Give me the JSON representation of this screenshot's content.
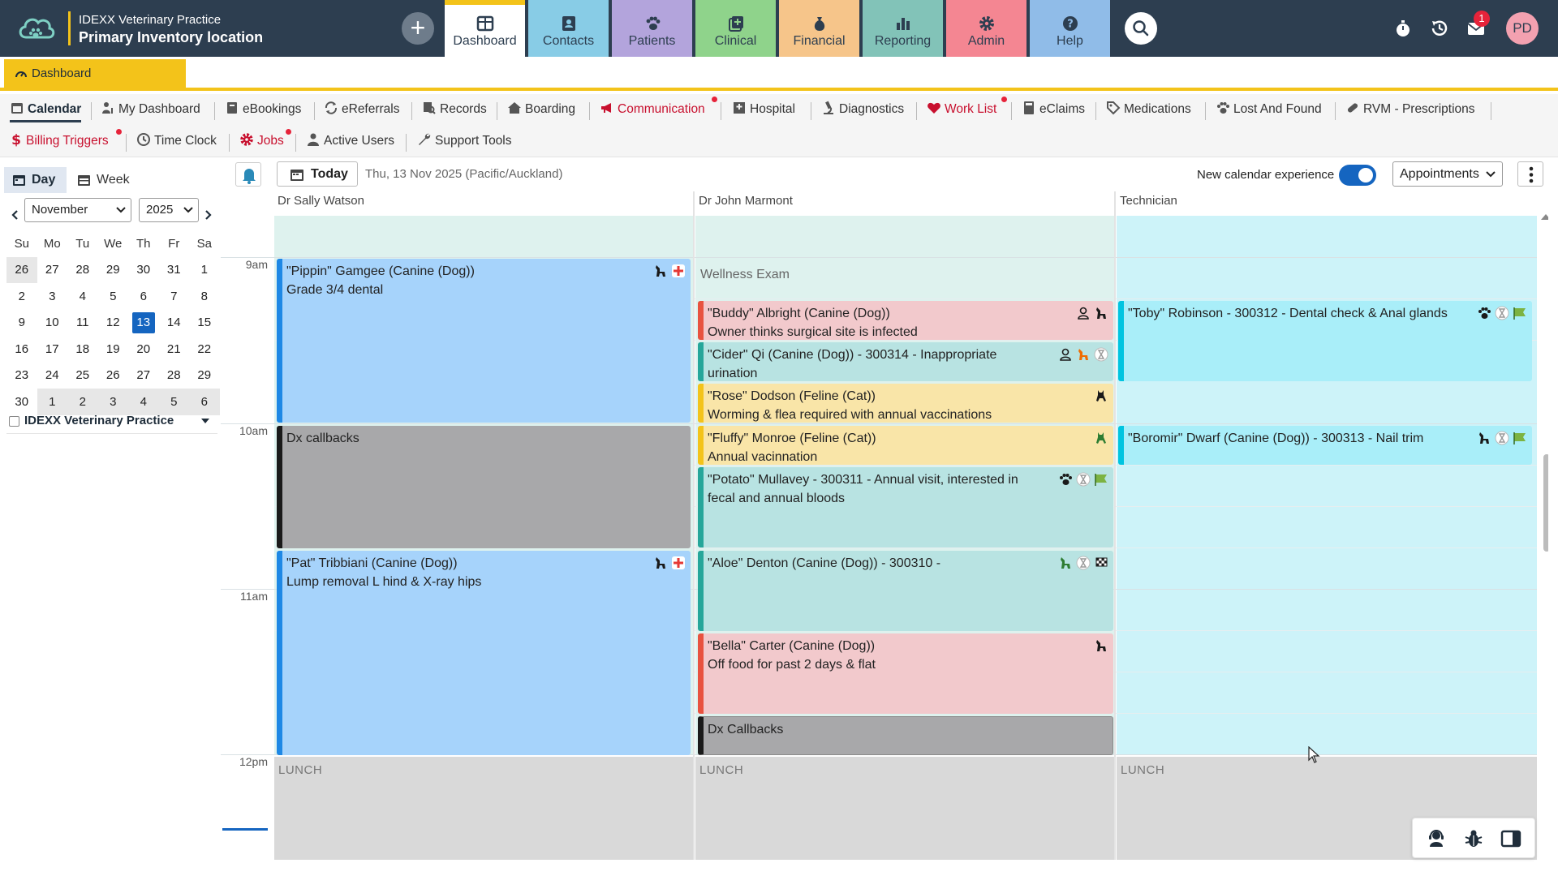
{
  "header": {
    "practice_name": "IDEXX Veterinary Practice",
    "location_name": "Primary Inventory location",
    "add_label": "+",
    "tabs": [
      {
        "label": "Dashboard",
        "color": "#ffffff",
        "active": true
      },
      {
        "label": "Contacts",
        "color": "#88cce6"
      },
      {
        "label": "Patients",
        "color": "#b3a4dc"
      },
      {
        "label": "Clinical",
        "color": "#8fd38b"
      },
      {
        "label": "Financial",
        "color": "#f6c58a"
      },
      {
        "label": "Reporting",
        "color": "#82c3b8"
      },
      {
        "label": "Admin",
        "color": "#f48692"
      },
      {
        "label": "Help",
        "color": "#90bce8"
      }
    ],
    "mail_count": "1",
    "user_initials": "PD"
  },
  "breadcrumb": {
    "label": "Dashboard"
  },
  "menu": {
    "row1": [
      "Calendar",
      "My Dashboard",
      "eBookings",
      "eReferrals",
      "Records",
      "Boarding",
      "Communication",
      "Hospital",
      "Diagnostics",
      "Work List",
      "eClaims",
      "Medications",
      "Lost And Found",
      "RVM - Prescriptions"
    ],
    "row2": [
      "Billing Triggers",
      "Time Clock",
      "Jobs",
      "Active Users",
      "Support Tools"
    ]
  },
  "sidebar": {
    "view_day": "Day",
    "view_week": "Week",
    "month": "November",
    "year": "2025",
    "weekdays": [
      "Su",
      "Mo",
      "Tu",
      "We",
      "Th",
      "Fr",
      "Sa"
    ],
    "weeks": [
      [
        "26",
        "27",
        "28",
        "29",
        "30",
        "31",
        "1"
      ],
      [
        "2",
        "3",
        "4",
        "5",
        "6",
        "7",
        "8"
      ],
      [
        "9",
        "10",
        "11",
        "12",
        "13",
        "14",
        "15"
      ],
      [
        "16",
        "17",
        "18",
        "19",
        "20",
        "21",
        "22"
      ],
      [
        "23",
        "24",
        "25",
        "26",
        "27",
        "28",
        "29"
      ],
      [
        "30",
        "1",
        "2",
        "3",
        "4",
        "5",
        "6"
      ]
    ],
    "selected_day": "13",
    "practice_filter": "IDEXX Veterinary Practice"
  },
  "toolbar": {
    "today_label": "Today",
    "date_label": "Thu, 13 Nov 2025 (Pacific/Auckland)",
    "new_calendar_label": "New calendar experience",
    "new_calendar_on": true,
    "view_select": "Appointments"
  },
  "calendar": {
    "columns": [
      "Dr Sally Watson",
      "Dr John Marmont",
      "Technician"
    ],
    "times": [
      "9am",
      "10am",
      "11am",
      "12pm"
    ],
    "lunch_label": "LUNCH",
    "wellness_label": "Wellness Exam",
    "appointments": {
      "pippin": {
        "title": "\"Pippin\" Gamgee (Canine (Dog))",
        "note": "Grade 3/4 dental"
      },
      "dx1": {
        "title": "Dx callbacks"
      },
      "pat": {
        "title": "\"Pat\" Tribbiani (Canine (Dog))",
        "note": "Lump removal L hind & X-ray hips"
      },
      "buddy": {
        "title": "\"Buddy\" Albright (Canine (Dog))",
        "note": "Owner thinks surgical site is infected"
      },
      "cider": {
        "title": "\"Cider\" Qi (Canine (Dog)) - 300314 - Inappropriate urination"
      },
      "rose": {
        "title": "\"Rose\" Dodson (Feline (Cat))",
        "note": "Worming & flea required with annual vaccinations"
      },
      "fluffy": {
        "title": "\"Fluffy\" Monroe (Feline (Cat))",
        "note": "Annual vacinnation"
      },
      "potato": {
        "title": "\"Potato\" Mullavey - 300311 - Annual visit, interested in fecal and annual bloods"
      },
      "aloe": {
        "title": "\"Aloe\" Denton (Canine (Dog)) - 300310 -"
      },
      "bella": {
        "title": "\"Bella\" Carter (Canine (Dog))",
        "note": "Off food for past 2 days & flat"
      },
      "dx2": {
        "title": "Dx Callbacks"
      },
      "toby": {
        "title": "\"Toby\" Robinson - 300312 - Dental check & Anal glands"
      },
      "boromir": {
        "title": "\"Boromir\" Dwarf (Canine (Dog)) - 300313 - Nail trim"
      }
    }
  },
  "colors": {
    "topbar": "#2d3e50",
    "accent_yellow": "#f3c31a",
    "primary_blue": "#1565c0",
    "appt_blue": "#a6d3fb",
    "appt_gray": "#a8a8aa",
    "appt_pink": "#f2c9cc",
    "appt_teal": "#b8e3e2",
    "appt_yellow": "#f9e5a8",
    "technician_bg": "#cdf3f9"
  }
}
